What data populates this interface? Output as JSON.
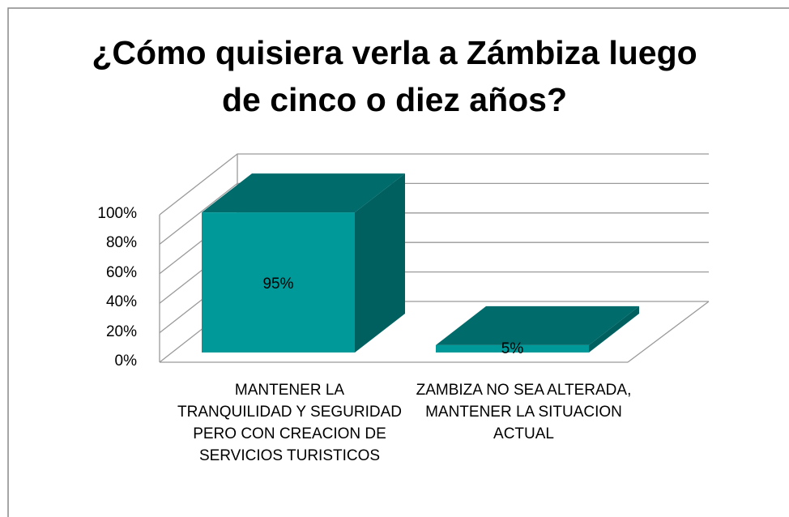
{
  "chart_data": {
    "type": "bar3d",
    "title": "¿Cómo quisiera verla a Zámbiza luego de cinco o diez años?",
    "categories": [
      "MANTENER LA TRANQUILIDAD Y SEGURIDAD PERO CON CREACION DE SERVICIOS TURISTICOS",
      "ZAMBIZA NO SEA ALTERADA, MANTENER LA SITUACION ACTUAL"
    ],
    "values": [
      95,
      5
    ],
    "value_labels": [
      "95%",
      "5%"
    ],
    "color": "#009999",
    "ylim": [
      0,
      100
    ],
    "yticks": [
      {
        "value": 0,
        "label": "0%"
      },
      {
        "value": 20,
        "label": "20%"
      },
      {
        "value": 40,
        "label": "40%"
      },
      {
        "value": 60,
        "label": "60%"
      },
      {
        "value": 80,
        "label": "80%"
      },
      {
        "value": 100,
        "label": "100%"
      }
    ],
    "grid": true
  }
}
